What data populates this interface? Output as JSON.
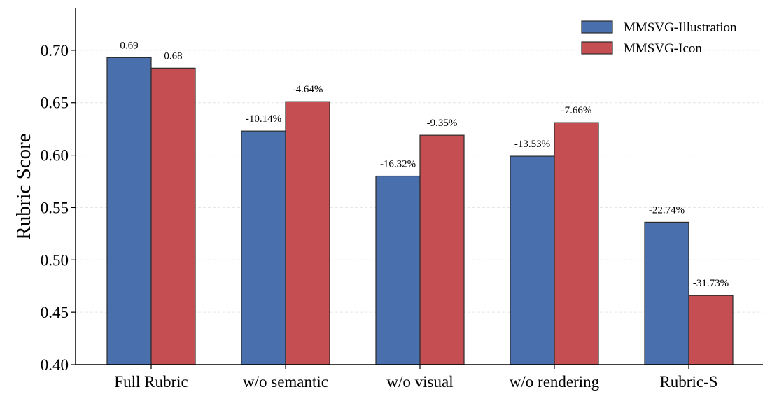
{
  "chart_data": {
    "type": "bar",
    "ylabel": "Rubric Score",
    "ylim": [
      0.4,
      0.74
    ],
    "yticks": [
      0.4,
      0.45,
      0.5,
      0.55,
      0.6,
      0.65,
      0.7
    ],
    "ytick_labels": [
      "0.40",
      "0.45",
      "0.50",
      "0.55",
      "0.60",
      "0.65",
      "0.70"
    ],
    "grid": "horizontal dashed, light",
    "legend_position": "top-right",
    "categories": [
      "Full Rubric",
      "w/o semantic",
      "w/o visual",
      "w/o rendering",
      "Rubric-S"
    ],
    "series": [
      {
        "name": "MMSVG-Illustration",
        "color": "#4a6fad",
        "values": [
          0.693,
          0.623,
          0.58,
          0.599,
          0.536
        ],
        "labels": [
          "0.69",
          "-10.14%",
          "-16.32%",
          "-13.53%",
          "-22.74%"
        ]
      },
      {
        "name": "MMSVG-Icon",
        "color": "#c44e52",
        "values": [
          0.683,
          0.651,
          0.619,
          0.631,
          0.466
        ],
        "labels": [
          "0.68",
          "-4.64%",
          "-9.35%",
          "-7.66%",
          "-31.73%"
        ]
      }
    ]
  }
}
